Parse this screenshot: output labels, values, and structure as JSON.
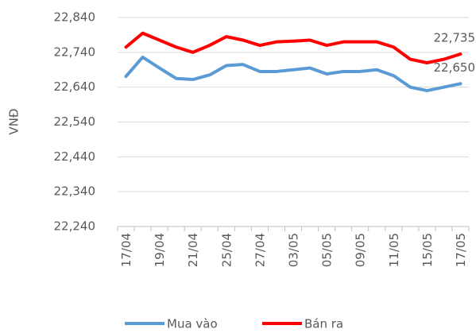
{
  "chart_data": {
    "type": "line",
    "y_label": "VNĐ",
    "categories": [
      "17/04",
      null,
      "19/04",
      null,
      "21/04",
      null,
      "25/04",
      null,
      "27/04",
      null,
      "03/05",
      null,
      "05/05",
      null,
      "09/05",
      null,
      "11/05",
      null,
      "15/05",
      null,
      "17/05"
    ],
    "series": [
      {
        "name": "Mua vào",
        "color": "#5b9bd5",
        "values": [
          22671,
          22726,
          22695,
          22665,
          22662,
          22675,
          22702,
          22705,
          22685,
          22685,
          22690,
          22695,
          22678,
          22685,
          22685,
          22690,
          22673,
          22640,
          22630,
          22640,
          22650
        ],
        "value_labels": [
          null,
          null,
          null,
          null,
          null,
          null,
          null,
          null,
          null,
          null,
          null,
          null,
          null,
          null,
          null,
          null,
          null,
          null,
          null,
          null,
          "22,650"
        ]
      },
      {
        "name": "Bán ra",
        "color": "#ff0000",
        "values": [
          22755,
          22795,
          22775,
          22755,
          22740,
          22760,
          22785,
          22775,
          22760,
          22770,
          22772,
          22775,
          22760,
          22770,
          22770,
          22770,
          22755,
          22720,
          22710,
          22720,
          22735
        ],
        "value_labels": [
          null,
          null,
          null,
          null,
          null,
          null,
          null,
          null,
          null,
          null,
          null,
          null,
          null,
          null,
          null,
          null,
          null,
          null,
          null,
          null,
          "22,735"
        ]
      }
    ],
    "ylim": [
      22240,
      22840
    ],
    "yticks": [
      {
        "value": 22240,
        "label": "22,240"
      },
      {
        "value": 22340,
        "label": "22,340"
      },
      {
        "value": 22440,
        "label": "22,440"
      },
      {
        "value": 22540,
        "label": "22,540"
      },
      {
        "value": 22640,
        "label": "22,640"
      },
      {
        "value": 22740,
        "label": "22,740"
      },
      {
        "value": 22840,
        "label": "22,840"
      }
    ],
    "grid": true
  }
}
